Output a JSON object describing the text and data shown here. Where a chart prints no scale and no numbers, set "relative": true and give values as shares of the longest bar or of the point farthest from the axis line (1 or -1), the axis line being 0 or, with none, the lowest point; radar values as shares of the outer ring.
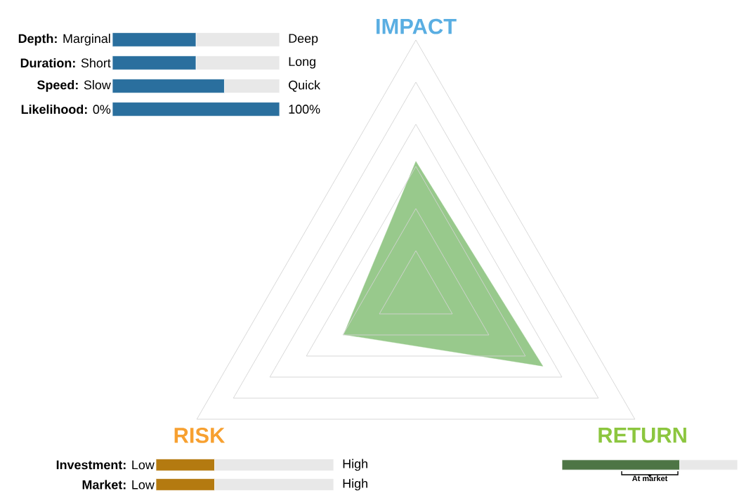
{
  "chart_data": [
    {
      "type": "radar",
      "categories": [
        "IMPACT",
        "RETURN",
        "RISK"
      ],
      "relative": true,
      "grid": true,
      "series": [
        {
          "color": "#98c98c",
          "values": [
            0.52,
            0.58,
            0.33
          ]
        }
      ]
    },
    {
      "type": "bar",
      "orientation": "horizontal",
      "relative": true,
      "stacked": true,
      "categories": [
        "**Depth:** Marginal",
        "**Duration:** Short",
        "**Speed:** Slow",
        "**Likelihood:** 0%"
      ],
      "series": [
        {
          "color": "#2a6f9e",
          "values": [
            0.5,
            0.5,
            0.67,
            1
          ]
        },
        {
          "color": "#e8e8e8",
          "values": [
            0.5,
            0.5,
            0.33,
            0
          ]
        }
      ],
      "annotations": [
        "Deep",
        "Long",
        "Quick",
        "100%"
      ]
    },
    {
      "type": "bar",
      "orientation": "horizontal",
      "relative": true,
      "stacked": true,
      "categories": [
        "**Investment:** Low",
        "**Market:** Low"
      ],
      "series": [
        {
          "color": "#b47a10",
          "values": [
            0.33,
            0.33
          ]
        },
        {
          "color": "#e8e8e8",
          "values": [
            0.67,
            0.67
          ]
        }
      ],
      "annotations": [
        "High",
        "High"
      ]
    },
    {
      "type": "bar",
      "orientation": "horizontal",
      "relative": true,
      "stacked": true,
      "categories": [
        null
      ],
      "series": [
        {
          "color": "#4d7545",
          "values": [
            0.67
          ]
        },
        {
          "color": "#e8e8e8",
          "values": [
            0.33
          ]
        }
      ],
      "annotations": [
        "At market"
      ]
    }
  ]
}
